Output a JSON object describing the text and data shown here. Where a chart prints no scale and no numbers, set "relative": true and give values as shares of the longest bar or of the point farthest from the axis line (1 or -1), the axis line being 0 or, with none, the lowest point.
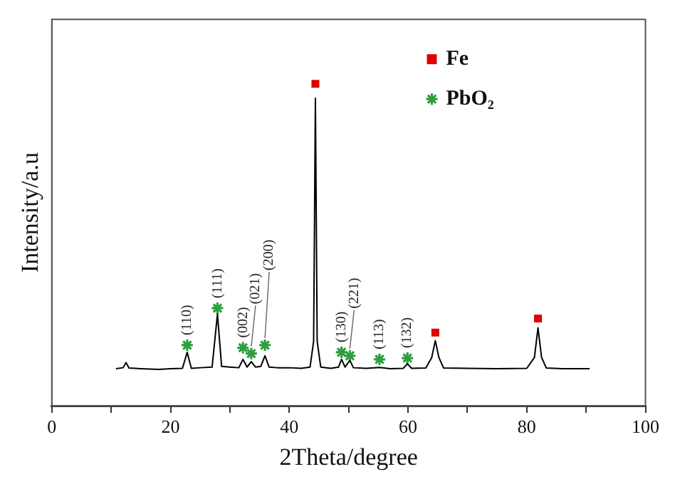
{
  "chart_data": {
    "type": "line",
    "relative": true,
    "xlabel": "2Theta/degree",
    "ylabel": "Intensity/a.u",
    "xlim": [
      0,
      100
    ],
    "xticks": [
      0,
      {
        "value": 10,
        "label": null
      },
      20,
      {
        "value": 30,
        "label": null
      },
      40,
      {
        "value": 50,
        "label": null
      },
      60,
      {
        "value": 70,
        "label": null
      },
      80,
      {
        "value": 90,
        "label": null
      },
      100
    ],
    "grid": false,
    "legend": "top right",
    "tick_labels": "x",
    "series": [
      {
        "type": "line",
        "color": "#000000",
        "marker": "none",
        "x": [
          10.8,
          12,
          12.5,
          13,
          15,
          18,
          20,
          22,
          22.8,
          23.5,
          25,
          27,
          27.9,
          28.6,
          30,
          31.5,
          32.2,
          32.9,
          33.6,
          34.3,
          35.2,
          35.9,
          36.6,
          38,
          40,
          42,
          43.5,
          44.1,
          44.4,
          44.7,
          45.3,
          47,
          48.3,
          48.8,
          49.4,
          50.2,
          50.8,
          53,
          55.2,
          57,
          59.2,
          59.9,
          60.6,
          63,
          64,
          64.6,
          65.2,
          66,
          70,
          75,
          80,
          81.3,
          81.9,
          82.5,
          83.3,
          86,
          90.6
        ],
        "values": [
          0.115,
          0.118,
          0.134,
          0.117,
          0.115,
          0.113,
          0.115,
          0.116,
          0.166,
          0.116,
          0.118,
          0.12,
          0.285,
          0.122,
          0.12,
          0.118,
          0.144,
          0.12,
          0.137,
          0.12,
          0.122,
          0.155,
          0.12,
          0.118,
          0.118,
          0.116,
          0.12,
          0.2,
          0.955,
          0.2,
          0.12,
          0.116,
          0.12,
          0.144,
          0.12,
          0.141,
          0.118,
          0.116,
          0.119,
          0.115,
          0.116,
          0.13,
          0.116,
          0.117,
          0.15,
          0.202,
          0.15,
          0.117,
          0.116,
          0.115,
          0.116,
          0.15,
          0.242,
          0.15,
          0.117,
          0.115,
          0.115
        ]
      },
      {
        "type": "scatter",
        "name": "Fe",
        "color": "#e00000",
        "marker": "square",
        "x": [
          44.4,
          64.6,
          81.9
        ],
        "values": [
          1,
          0.227,
          0.271
        ]
      },
      {
        "type": "scatter",
        "name": "PbO₂",
        "color": "#2e9e3e",
        "marker": "cross",
        "x": [
          22.8,
          27.9,
          32.2,
          33.6,
          35.9,
          48.8,
          50.2,
          55.2,
          59.9
        ],
        "values": [
          0.188,
          0.303,
          0.18,
          0.162,
          0.188,
          0.166,
          0.155,
          0.144,
          0.148
        ]
      }
    ],
    "annotations": [
      {
        "text": "(110)",
        "x": 22.8,
        "y": 0.188
      },
      {
        "text": "(111)",
        "x": 27.9,
        "y": 0.303
      },
      {
        "text": "(002)",
        "x": 32.2,
        "y": 0.18
      },
      {
        "text": "(021)",
        "x": 33.6,
        "y": 0.162
      },
      {
        "text": "(200)",
        "x": 35.9,
        "y": 0.188
      },
      {
        "text": "(130)",
        "x": 48.8,
        "y": 0.166
      },
      {
        "text": "(221)",
        "x": 50.2,
        "y": 0.155
      },
      {
        "text": "(113)",
        "x": 55.2,
        "y": 0.144
      },
      {
        "text": "(132)",
        "x": 59.9,
        "y": 0.148
      }
    ]
  }
}
